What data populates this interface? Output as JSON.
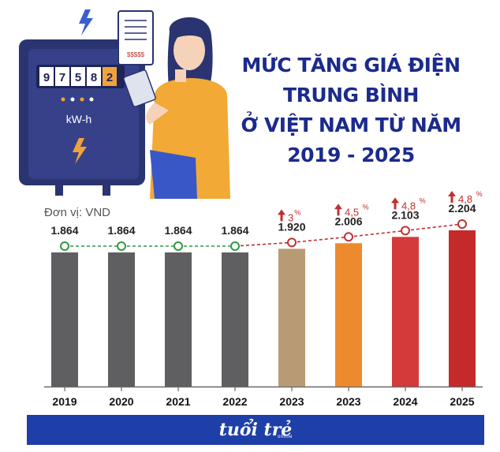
{
  "header": {
    "title_lines": [
      "MỨC TĂNG GIÁ ĐIỆN",
      "TRUNG BÌNH",
      "Ở VIỆT NAM TỪ NĂM",
      "2019 - 2025"
    ]
  },
  "illustration": {
    "meter_digits": [
      "9",
      "7",
      "5",
      "8",
      "2"
    ],
    "meter_unit": "kW-h",
    "receipt_text": "$$$$$"
  },
  "unit_label": "Đơn vị: VND",
  "chart_data": {
    "type": "bar",
    "categories": [
      "2019",
      "2020",
      "2021",
      "2022",
      "2023",
      "2023",
      "2024",
      "2025"
    ],
    "values": [
      1864,
      1864,
      1864,
      1864,
      1920,
      2006,
      2103,
      2204
    ],
    "value_labels": [
      "1.864",
      "1.864",
      "1.864",
      "1.864",
      "1.920",
      "2.006",
      "2.103",
      "2.204"
    ],
    "increase_labels": [
      "",
      "",
      "",
      "",
      "3",
      "4,5",
      "4,8",
      "4,8"
    ],
    "percent_symbol": "%",
    "bar_colors": [
      "#5f5f62",
      "#5f5f62",
      "#5f5f62",
      "#5f5f62",
      "#b89a74",
      "#ee8a2e",
      "#d43a3a",
      "#c52a2a"
    ],
    "line_colors": {
      "flat": "#2e9a3f",
      "rising": "#c0302f"
    },
    "arrow_color": "#c0302f",
    "grid": false,
    "legend": "none"
  },
  "footer": {
    "logo": "tuổi trẻ",
    "logo_sub": "online",
    "background": "#1e3fa8"
  }
}
